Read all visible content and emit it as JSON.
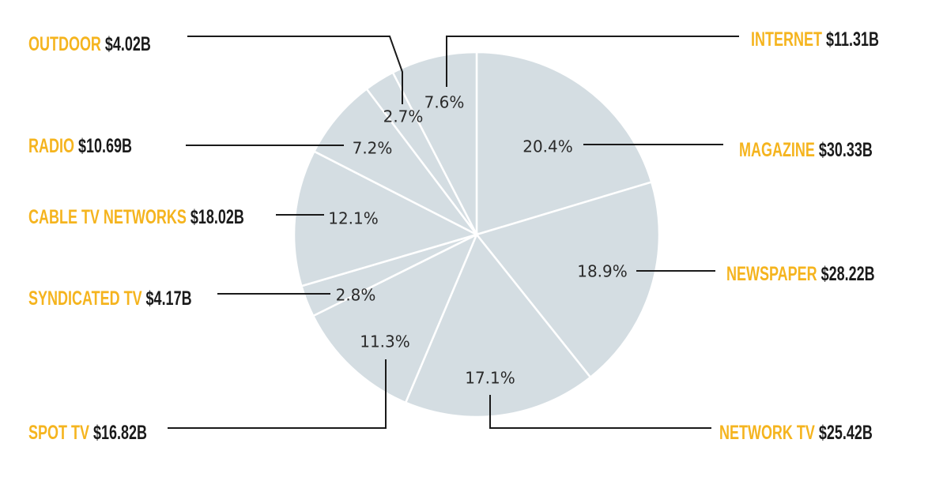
{
  "chart_data": {
    "type": "pie",
    "start_angle_deg": 0,
    "direction": "clockwise",
    "slice_color": "#d4dde2",
    "category_color": "#f5b41e",
    "value_color": "#1a1a1a",
    "slices": [
      {
        "name": "MAGAZINE",
        "amount": "$30.33B",
        "value": 30.33,
        "pct_label": "20.4%"
      },
      {
        "name": "NEWSPAPER",
        "amount": "$28.22B",
        "value": 28.22,
        "pct_label": "18.9%"
      },
      {
        "name": "NETWORK TV",
        "amount": "$25.42B",
        "value": 25.42,
        "pct_label": "17.1%"
      },
      {
        "name": "SPOT TV",
        "amount": "$16.82B",
        "value": 16.82,
        "pct_label": "11.3%"
      },
      {
        "name": "SYNDICATED TV",
        "amount": "$4.17B",
        "value": 4.17,
        "pct_label": "2.8%"
      },
      {
        "name": "CABLE TV NETWORKS",
        "amount": "$18.02B",
        "value": 18.02,
        "pct_label": "12.1%"
      },
      {
        "name": "RADIO",
        "amount": "$10.69B",
        "value": 10.69,
        "pct_label": "7.2%"
      },
      {
        "name": "OUTDOOR",
        "amount": "$4.02B",
        "value": 4.02,
        "pct_label": "2.7%"
      },
      {
        "name": "INTERNET",
        "amount": "$11.31B",
        "value": 11.31,
        "pct_label": "7.6%"
      }
    ]
  }
}
